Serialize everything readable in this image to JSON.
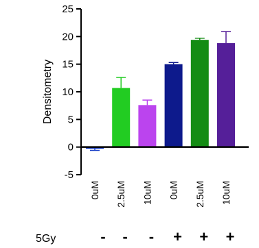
{
  "chart_data": {
    "type": "bar",
    "ylabel": "Densitometry",
    "xlabel": "",
    "title": "",
    "ylim": [
      -5,
      25
    ],
    "yticks": [
      -5,
      0,
      5,
      10,
      15,
      20,
      25
    ],
    "grid": false,
    "categories": [
      "0uM",
      "2.5uM",
      "10uM",
      "0uM",
      "2.5uM",
      "10uM"
    ],
    "values": [
      -0.3,
      10.7,
      7.6,
      15.0,
      19.4,
      18.8
    ],
    "errors": [
      0.3,
      1.9,
      0.9,
      0.3,
      0.3,
      2.1
    ],
    "colors": [
      "#1a3fc7",
      "#22cc22",
      "#bb44ee",
      "#0d1a8c",
      "#148c14",
      "#551f99"
    ],
    "condition": {
      "label": "5Gy",
      "values": [
        "-",
        "-",
        "-",
        "+",
        "+",
        "+"
      ]
    }
  }
}
